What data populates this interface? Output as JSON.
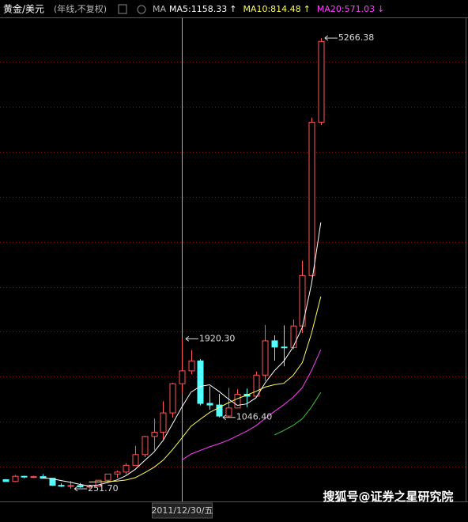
{
  "chart_data": {
    "type": "candlestick",
    "title": "黄金/美元",
    "subtitle": "(年线,不复权)",
    "indicator_label": "MA",
    "categories": [
      null,
      null,
      null,
      null,
      null,
      null,
      null,
      null,
      null,
      null,
      null,
      null,
      null,
      null,
      null,
      null,
      null,
      null,
      null,
      "2011/12/30/五",
      null,
      null,
      null,
      null,
      null,
      null,
      null,
      null,
      null,
      null,
      null,
      null,
      null,
      null,
      null
    ],
    "open": [
      353,
      333,
      391,
      383,
      387,
      369,
      290,
      288,
      288,
      272,
      279,
      347,
      416,
      438,
      513,
      632,
      834,
      882,
      1096,
      1421,
      1564,
      1675,
      1202,
      1184,
      1061,
      1151,
      1303,
      1282,
      1517,
      1898,
      1829,
      1824,
      2063,
      2625,
      4330
    ],
    "high": [
      360,
      406,
      397,
      396,
      415,
      369,
      313,
      339,
      317,
      293,
      350,
      417,
      456,
      538,
      730,
      842,
      1033,
      1227,
      1431,
      1920.3,
      1796,
      1696,
      1392,
      1308,
      1375,
      1358,
      1366,
      1557,
      2075,
      1959,
      2070,
      2135,
      2790,
      4381,
      5266.38
    ],
    "low": [
      330,
      326,
      370,
      372,
      367,
      283,
      273,
      251.7,
      263,
      255,
      277,
      319,
      373,
      411,
      510,
      603,
      681,
      802,
      1044,
      1308,
      1527,
      1180,
      1132,
      1046.4,
      1046,
      1146,
      1160,
      1266,
      1451,
      1677,
      1615,
      1805,
      1985,
      2615,
      4300
    ],
    "close": [
      333,
      391,
      383,
      387,
      369,
      290,
      288,
      288,
      272,
      279,
      347,
      416,
      438,
      513,
      632,
      834,
      882,
      1096,
      1421,
      1564,
      1675,
      1202,
      1184,
      1061,
      1151,
      1303,
      1282,
      1517,
      1898,
      1829,
      1824,
      2063,
      2625,
      4330,
      5230
    ],
    "up_color": "#ff5656",
    "down_color": "#54ffff",
    "series": [
      {
        "name": "MA5:1158.33",
        "trend": "↑",
        "color": "#ffffff",
        "values": [
          null,
          null,
          null,
          null,
          372.6,
          364,
          343.4,
          324.4,
          301.4,
          283.4,
          294.8,
          320.4,
          350.4,
          398.6,
          469.2,
          566.6,
          659.8,
          791.4,
          973,
          1159.4,
          1327.6,
          1391.6,
          1409.2,
          1337.2,
          1254.6,
          1180.2,
          1196.2,
          1262.8,
          1430.2,
          1565.8,
          1670,
          1826.2,
          2047.8,
          2534.2,
          3214.4
        ]
      },
      {
        "name": "MA10:814.48",
        "trend": "↑",
        "color": "#ffff60",
        "values": [
          null,
          null,
          null,
          null,
          null,
          null,
          null,
          null,
          null,
          328,
          329.4,
          331.9,
          337.4,
          350,
          376.3,
          430.7,
          490.1,
          570.9,
          685.8,
          814.3,
          947.1,
          1025.7,
          1100.3,
          1155.1,
          1207,
          1253.9,
          1293.9,
          1336,
          1383.7,
          1410.2,
          1425.1,
          1511.2,
          1655.3,
          1982.2,
          2390.1
        ]
      },
      {
        "name": "MA20:571.03",
        "trend": "↓",
        "color": "#ff40ff",
        "values": [
          null,
          null,
          null,
          null,
          null,
          null,
          null,
          null,
          null,
          null,
          null,
          null,
          null,
          null,
          null,
          null,
          null,
          null,
          null,
          571.2,
          638.3,
          678.8,
          718.9,
          752.6,
          791.7,
          842.3,
          892,
          953.5,
          1034.8,
          1112.3,
          1186.1,
          1268.5,
          1377.8,
          1568.7,
          1798.6
        ]
      },
      {
        "color": "#3cc83c",
        "values": [
          null,
          null,
          null,
          null,
          null,
          null,
          null,
          null,
          null,
          null,
          null,
          null,
          null,
          null,
          null,
          null,
          null,
          null,
          null,
          null,
          null,
          null,
          null,
          null,
          null,
          null,
          null,
          null,
          null,
          850.8,
          900.5,
          956.3,
          1031,
          1162.4,
          1324.5
        ]
      }
    ],
    "annotations": [
      {
        "label": "5266.38",
        "value": 5266.38
      },
      {
        "label": "1920.30",
        "value": 1920.3
      },
      {
        "label": "1046.40",
        "value": 1046.4
      },
      {
        "label": "251.70",
        "value": 251.7
      }
    ],
    "ylim": [
      120,
      5470
    ],
    "yticks": [
      500,
      1000,
      1500,
      2000,
      2500,
      3000,
      3500,
      4000,
      4500,
      5000
    ],
    "grid": true,
    "watermark": "搜狐号@证券之星研究院"
  }
}
